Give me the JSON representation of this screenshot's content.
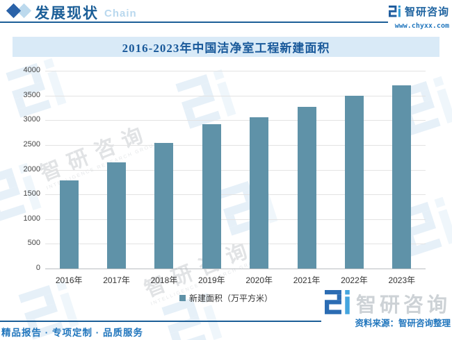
{
  "header": {
    "section_title": "发展现状",
    "section_subtitle": "Chain",
    "brand": "智研咨询",
    "website": "www.chyxx.com"
  },
  "chart_data": {
    "type": "bar",
    "title": "2016-2023年中国洁净室工程新建面积",
    "categories": [
      "2016年",
      "2017年",
      "2018年",
      "2019年",
      "2020年",
      "2021年",
      "2022年",
      "2023年"
    ],
    "values": [
      1780,
      2150,
      2545,
      2915,
      3060,
      3270,
      3490,
      3700
    ],
    "series_name": "新建面积（万平方米）",
    "xlabel": "",
    "ylabel": "",
    "ylim": [
      0,
      4000
    ],
    "ytick_step": 500,
    "grid": true,
    "legend_position": "bottom",
    "bar_color": "#5f92a8"
  },
  "footer": {
    "source_label": "资料来源：智研咨询整理",
    "services": "精品报告 · 专项定制 · 品质服务",
    "brand_watermark": "智研咨询"
  },
  "watermark": {
    "text": "智研咨询",
    "caption": "INTELLIGENCE RESEARCH GROUP"
  },
  "colors": {
    "accent_dark": "#1b5e97",
    "accent_blue": "#2176bd",
    "light_blue": "#b9d8ee",
    "title_bg": "#d9eaf7",
    "bar": "#5f92a8"
  }
}
